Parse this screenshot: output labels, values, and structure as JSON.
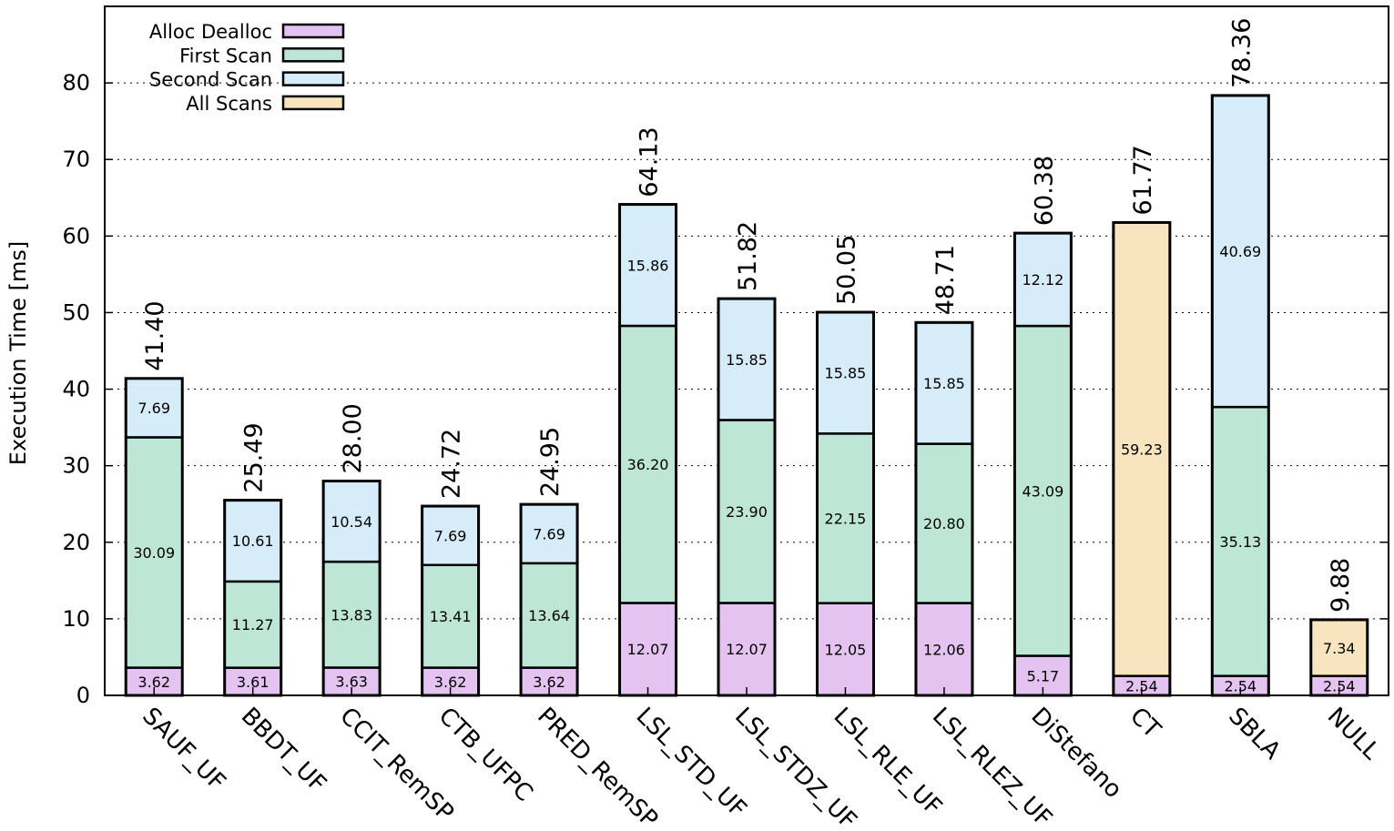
{
  "chart_data": {
    "type": "bar",
    "stacked": true,
    "title": "",
    "xlabel": "",
    "ylabel": "Execution Time [ms]",
    "ylim": [
      0,
      90
    ],
    "yticks": [
      0,
      10,
      20,
      30,
      40,
      50,
      60,
      70,
      80
    ],
    "grid": true,
    "legend_position": "top-left",
    "categories": [
      "SAUF_UF",
      "BBDT_UF",
      "CCIT_RemSP",
      "CTB_UFPC",
      "PRED_RemSP",
      "LSL_STD_UF",
      "LSL_STDZ_UF",
      "LSL_RLE_UF",
      "LSL_RLEZ_UF",
      "DiStefano",
      "CT",
      "SBLA",
      "NULL"
    ],
    "series": [
      {
        "name": "Alloc Dealloc",
        "color": "#e4c3f0",
        "values": [
          3.62,
          3.61,
          3.63,
          3.62,
          3.62,
          12.07,
          12.07,
          12.05,
          12.06,
          5.17,
          2.54,
          2.54,
          2.54
        ]
      },
      {
        "name": "First Scan",
        "color": "#bde6d6",
        "values": [
          30.09,
          11.27,
          13.83,
          13.41,
          13.64,
          36.2,
          23.9,
          22.15,
          20.8,
          43.09,
          null,
          35.13,
          null
        ]
      },
      {
        "name": "Second Scan",
        "color": "#d6ecf8",
        "values": [
          7.69,
          10.61,
          10.54,
          7.69,
          7.69,
          15.86,
          15.85,
          15.85,
          15.85,
          12.12,
          null,
          40.69,
          null
        ]
      },
      {
        "name": "All Scans",
        "color": "#f8e5c0",
        "values": [
          null,
          null,
          null,
          null,
          null,
          null,
          null,
          null,
          null,
          null,
          59.23,
          null,
          7.34
        ]
      }
    ],
    "value_labels": [
      [
        "3.62",
        "3.61",
        "3.63",
        "3.62",
        "3.62",
        "12.07",
        "12.07",
        "12.05",
        "12.06",
        "5.17",
        "2.54",
        "2.54",
        "2.54"
      ],
      [
        "30.09",
        "11.27",
        "13.83",
        "13.41",
        "13.64",
        "36.20",
        "23.90",
        "22.15",
        "20.80",
        "43.09",
        "",
        "35.13",
        ""
      ],
      [
        "7.69",
        "10.61",
        "10.54",
        "7.69",
        "7.69",
        "15.86",
        "15.85",
        "15.85",
        "15.85",
        "12.12",
        "",
        "40.69",
        ""
      ],
      [
        "",
        "",
        "",
        "",
        "",
        "",
        "",
        "",
        "",
        "",
        "59.23",
        "",
        "7.34"
      ]
    ],
    "totals": [
      41.4,
      25.49,
      28.0,
      24.72,
      24.95,
      64.13,
      51.82,
      50.05,
      48.71,
      60.38,
      61.77,
      78.36,
      9.88
    ],
    "total_labels": [
      "41.40",
      "25.49",
      "28.00",
      "24.72",
      "24.95",
      "64.13",
      "51.82",
      "50.05",
      "48.71",
      "60.38",
      "61.77",
      "78.36",
      "9.88"
    ]
  }
}
